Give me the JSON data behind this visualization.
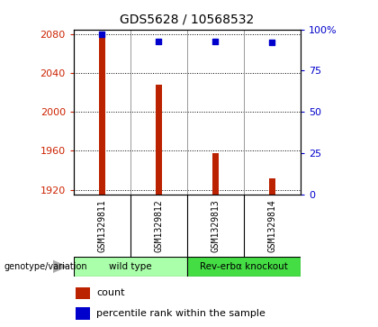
{
  "title": "GDS5628 / 10568532",
  "samples": [
    "GSM1329811",
    "GSM1329812",
    "GSM1329813",
    "GSM1329814"
  ],
  "counts": [
    2079,
    2028,
    1958,
    1932
  ],
  "percentile_ranks": [
    97,
    93,
    93,
    92
  ],
  "ylim_left": [
    1915,
    2085
  ],
  "ylim_right": [
    0,
    100
  ],
  "yticks_left": [
    1920,
    1960,
    2000,
    2040,
    2080
  ],
  "yticks_right": [
    0,
    25,
    50,
    75,
    100
  ],
  "bar_color": "#bb2200",
  "dot_color": "#0000cc",
  "groups": [
    {
      "label": "wild type",
      "samples": [
        0,
        1
      ],
      "color": "#aaffaa"
    },
    {
      "label": "Rev-erbα knockout",
      "samples": [
        2,
        3
      ],
      "color": "#44dd44"
    }
  ],
  "xlabel_group": "genotype/variation",
  "legend_count_label": "count",
  "legend_percentile_label": "percentile rank within the sample",
  "bar_width": 0.12,
  "grid_linestyle": "dotted",
  "grid_color": "#000000",
  "bg_color": "#ffffff",
  "plot_bg_color": "#ffffff",
  "tick_label_left_color": "#cc2200",
  "tick_label_right_color": "#0000cc",
  "sample_label_bg": "#cccccc",
  "vline_color": "#888888",
  "border_color": "#000000"
}
